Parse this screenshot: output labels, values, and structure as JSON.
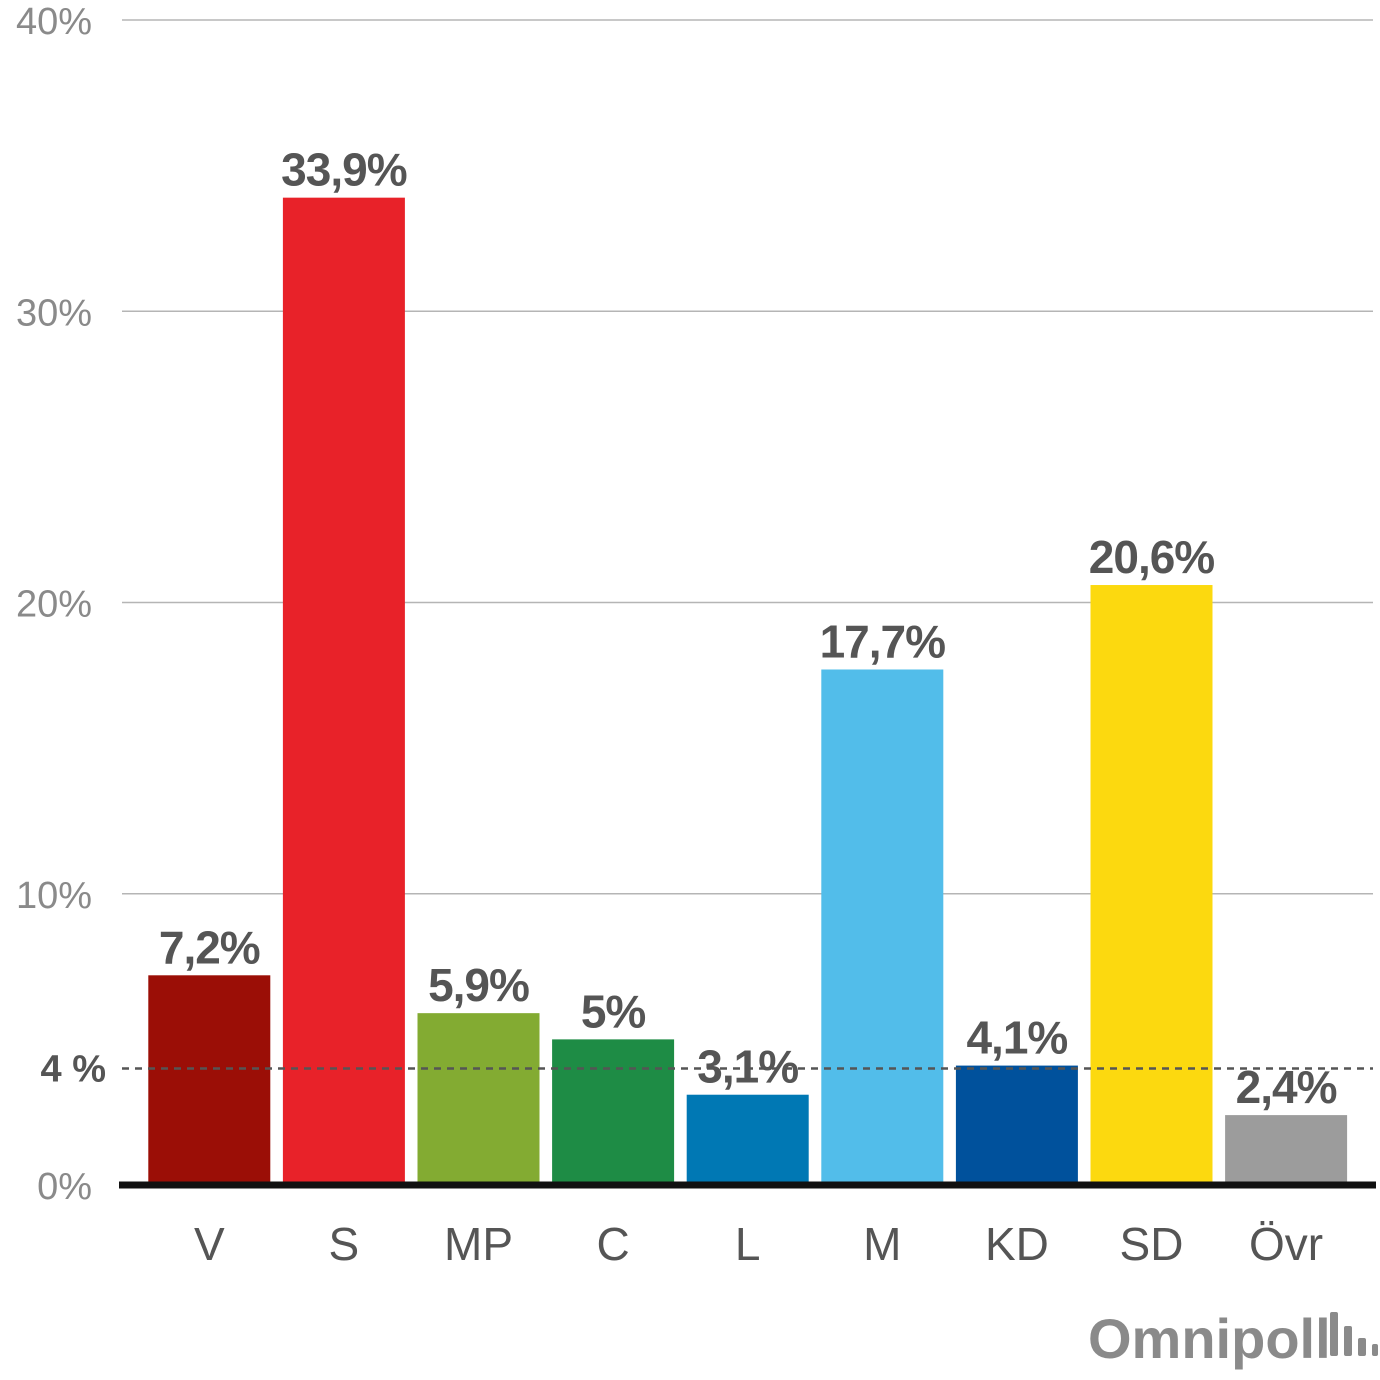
{
  "chart_data": {
    "type": "bar",
    "categories": [
      "V",
      "S",
      "MP",
      "C",
      "L",
      "M",
      "KD",
      "SD",
      "Övr"
    ],
    "values": [
      7.2,
      33.9,
      5.9,
      5.0,
      3.1,
      17.7,
      4.1,
      20.6,
      2.4
    ],
    "value_labels": [
      "7,2%",
      "33,9%",
      "5,9%",
      "5%",
      "3,1%",
      "17,7%",
      "4,1%",
      "20,6%",
      "2,4%"
    ],
    "colors": [
      "#9b0e06",
      "#e82229",
      "#83ab32",
      "#1e8c45",
      "#0078b4",
      "#52bdea",
      "#00519c",
      "#fcd90f",
      "#9c9c9c"
    ],
    "ylim": [
      0,
      40
    ],
    "yticks": [
      0,
      10,
      20,
      30,
      40
    ],
    "ytick_labels": [
      "0%",
      "10%",
      "20%",
      "30%",
      "40%"
    ],
    "threshold": {
      "value": 4,
      "label": "4 %"
    },
    "grid": true,
    "title": "",
    "xlabel": "",
    "ylabel": ""
  },
  "branding": {
    "logo_text": "Omnipoll"
  }
}
